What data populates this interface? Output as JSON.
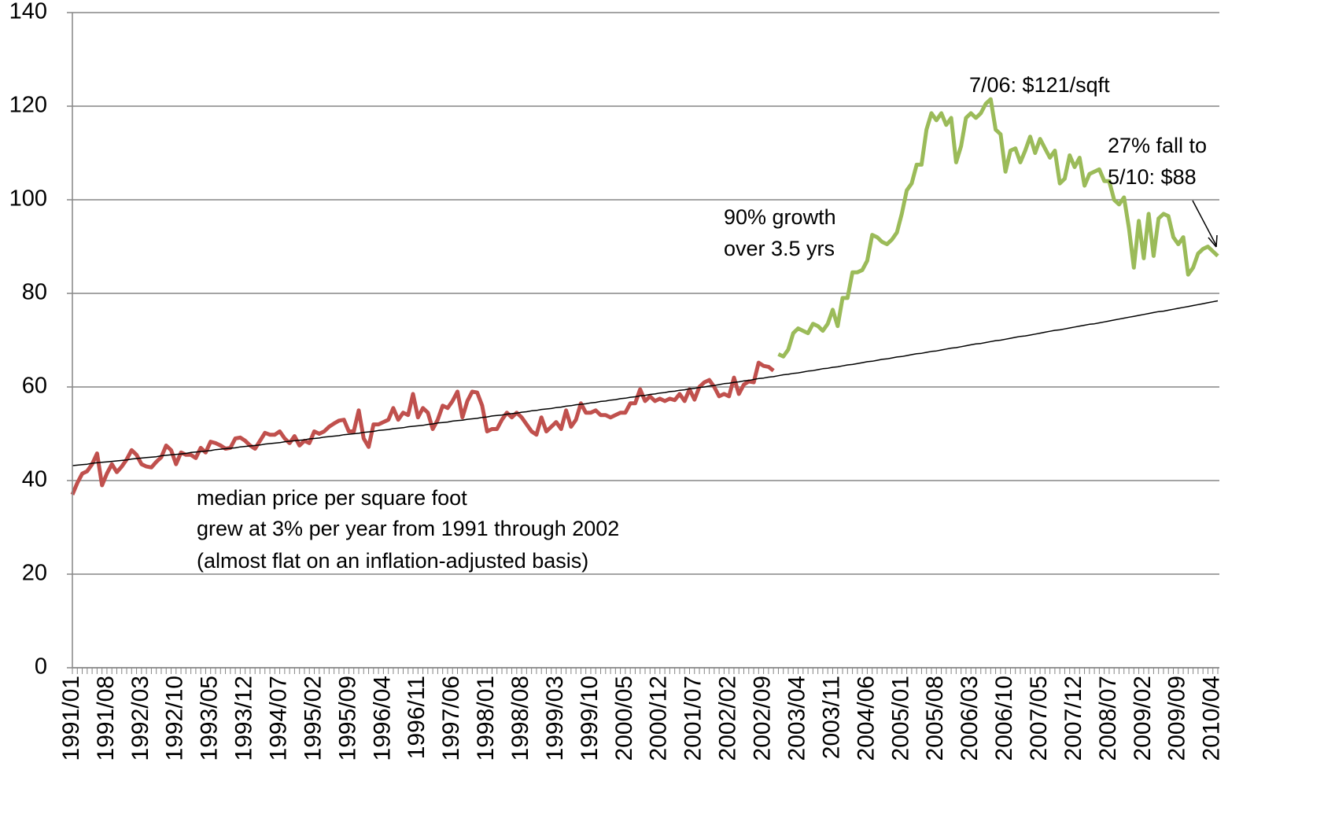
{
  "chart_data": {
    "type": "line",
    "categories": [
      "1991/01",
      null,
      null,
      null,
      null,
      null,
      null,
      "1991/08",
      null,
      null,
      null,
      null,
      null,
      null,
      "1992/03",
      null,
      null,
      null,
      null,
      null,
      null,
      "1992/10",
      null,
      null,
      null,
      null,
      null,
      null,
      "1993/05",
      null,
      null,
      null,
      null,
      null,
      null,
      "1993/12",
      null,
      null,
      null,
      null,
      null,
      null,
      "1994/07",
      null,
      null,
      null,
      null,
      null,
      null,
      "1995/02",
      null,
      null,
      null,
      null,
      null,
      null,
      "1995/09",
      null,
      null,
      null,
      null,
      null,
      null,
      "1996/04",
      null,
      null,
      null,
      null,
      null,
      null,
      "1996/11",
      null,
      null,
      null,
      null,
      null,
      null,
      "1997/06",
      null,
      null,
      null,
      null,
      null,
      null,
      "1998/01",
      null,
      null,
      null,
      null,
      null,
      null,
      "1998/08",
      null,
      null,
      null,
      null,
      null,
      null,
      "1999/03",
      null,
      null,
      null,
      null,
      null,
      null,
      "1999/10",
      null,
      null,
      null,
      null,
      null,
      null,
      "2000/05",
      null,
      null,
      null,
      null,
      null,
      null,
      "2000/12",
      null,
      null,
      null,
      null,
      null,
      null,
      "2001/07",
      null,
      null,
      null,
      null,
      null,
      null,
      "2002/02",
      null,
      null,
      null,
      null,
      null,
      null,
      "2002/09",
      null,
      null,
      null,
      null,
      null,
      null,
      "2003/04",
      null,
      null,
      null,
      null,
      null,
      null,
      "2003/11",
      null,
      null,
      null,
      null,
      null,
      null,
      "2004/06",
      null,
      null,
      null,
      null,
      null,
      null,
      "2005/01",
      null,
      null,
      null,
      null,
      null,
      null,
      "2005/08",
      null,
      null,
      null,
      null,
      null,
      null,
      "2006/03",
      null,
      null,
      null,
      null,
      null,
      null,
      "2006/10",
      null,
      null,
      null,
      null,
      null,
      null,
      "2007/05",
      null,
      null,
      null,
      null,
      null,
      null,
      "2007/12",
      null,
      null,
      null,
      null,
      null,
      null,
      "2008/07",
      null,
      null,
      null,
      null,
      null,
      null,
      "2009/02",
      null,
      null,
      null,
      null,
      null,
      null,
      "2009/09",
      null,
      null,
      null,
      null,
      null,
      null,
      "2010/04",
      null
    ],
    "series": [
      {
        "color": "#c0504d",
        "values": [
          37,
          39.5,
          41.5,
          42,
          43.5,
          45.8,
          39,
          41.5,
          43.5,
          41.8,
          43,
          44.5,
          46.5,
          45.5,
          43.5,
          43,
          42.8,
          44,
          45,
          47.5,
          46.5,
          43.5,
          46,
          45.5,
          45.5,
          44.8,
          47,
          46,
          48.3,
          48,
          47.5,
          46.8,
          47,
          49,
          49.2,
          48.5,
          47.5,
          46.8,
          48.5,
          50.2,
          49.8,
          49.8,
          50.5,
          49,
          48,
          49.5,
          47.5,
          48.5,
          48,
          50.5,
          50,
          50.5,
          51.5,
          52.2,
          52.8,
          53,
          50.5,
          50.5,
          55,
          49,
          47.2,
          52,
          52,
          52.5,
          53,
          55.5,
          53,
          54.5,
          54,
          58.5,
          53.5,
          55.5,
          54.5,
          51,
          53,
          56,
          55.5,
          57,
          59,
          53.5,
          57,
          59,
          58.8,
          56,
          50.5,
          51,
          51,
          53,
          54.5,
          53.5,
          54.5,
          53.5,
          52,
          50.5,
          49.8,
          53.5,
          50.5,
          51.5,
          52.5,
          51,
          55,
          51.5,
          53,
          56.5,
          54.5,
          54.5,
          55,
          54,
          54,
          53.5,
          54,
          54.5,
          54.5,
          56.5,
          56.5,
          59.5,
          57,
          58,
          57,
          57.5,
          57,
          57.5,
          57.2,
          58.5,
          57,
          59.5,
          57.3,
          60,
          61,
          61.5,
          60,
          58,
          58.5,
          58,
          62,
          58.5,
          60.5,
          61.2,
          61,
          65.2,
          64.5,
          64.3,
          63.5,
          null,
          null,
          null,
          null,
          null,
          null,
          null,
          null,
          null,
          null,
          null,
          null,
          null,
          null,
          null,
          null,
          null,
          null,
          null,
          null,
          null,
          null,
          null,
          null,
          null,
          null,
          null,
          null,
          null,
          null,
          null,
          null,
          null,
          null,
          null,
          null,
          null,
          null,
          null,
          null,
          null,
          null,
          null,
          null,
          null,
          null,
          null,
          null,
          null,
          null,
          null,
          null,
          null,
          null,
          null,
          null,
          null,
          null,
          null,
          null,
          null,
          null,
          null,
          null,
          null,
          null,
          null,
          null,
          null,
          null,
          null,
          null,
          null,
          null,
          null,
          null,
          null,
          null,
          null,
          null,
          null,
          null,
          null,
          null,
          null,
          null,
          null,
          null,
          null,
          null
        ]
      },
      {
        "color": "#9bbb59",
        "values": [
          null,
          null,
          null,
          null,
          null,
          null,
          null,
          null,
          null,
          null,
          null,
          null,
          null,
          null,
          null,
          null,
          null,
          null,
          null,
          null,
          null,
          null,
          null,
          null,
          null,
          null,
          null,
          null,
          null,
          null,
          null,
          null,
          null,
          null,
          null,
          null,
          null,
          null,
          null,
          null,
          null,
          null,
          null,
          null,
          null,
          null,
          null,
          null,
          null,
          null,
          null,
          null,
          null,
          null,
          null,
          null,
          null,
          null,
          null,
          null,
          null,
          null,
          null,
          null,
          null,
          null,
          null,
          null,
          null,
          null,
          null,
          null,
          null,
          null,
          null,
          null,
          null,
          null,
          null,
          null,
          null,
          null,
          null,
          null,
          null,
          null,
          null,
          null,
          null,
          null,
          null,
          null,
          null,
          null,
          null,
          null,
          null,
          null,
          null,
          null,
          null,
          null,
          null,
          null,
          null,
          null,
          null,
          null,
          null,
          null,
          null,
          null,
          null,
          null,
          null,
          null,
          null,
          null,
          null,
          null,
          null,
          null,
          null,
          null,
          null,
          null,
          null,
          null,
          null,
          null,
          null,
          null,
          null,
          null,
          null,
          null,
          null,
          null,
          null,
          null,
          null,
          null,
          null,
          67,
          66.5,
          68,
          71.5,
          72.5,
          72,
          71.5,
          73.5,
          73,
          72,
          73.5,
          76.5,
          73,
          79,
          79,
          84.5,
          84.5,
          85,
          87,
          92.5,
          92,
          91,
          90.5,
          91.5,
          93,
          97,
          102,
          103.5,
          107.5,
          107.5,
          115,
          118.5,
          117,
          118.5,
          116,
          117.5,
          108,
          111.5,
          117.5,
          118.5,
          117.5,
          118.5,
          120.5,
          121.5,
          115,
          114,
          106,
          110.5,
          111,
          108,
          110.5,
          113.5,
          110,
          113,
          111,
          109,
          110.5,
          103.5,
          104.5,
          109.5,
          107,
          109,
          103,
          105.5,
          106,
          106.5,
          104,
          104,
          100,
          99,
          100.5,
          94,
          85.5,
          95.5,
          87.5,
          97,
          88,
          96,
          97,
          96.5,
          92,
          90.5,
          92,
          84,
          85.5,
          88.5,
          89.5,
          90,
          89,
          88
        ]
      },
      {
        "color": "#000000",
        "trendline": true,
        "values": [
          43.2,
          43.3,
          43.4,
          43.5,
          43.7,
          43.8,
          43.9,
          44.0,
          44.1,
          44.2,
          44.3,
          44.4,
          44.6,
          44.7,
          44.8,
          44.9,
          45.0,
          45.1,
          45.3,
          45.4,
          45.5,
          45.6,
          45.7,
          45.8,
          46.0,
          46.1,
          46.2,
          46.3,
          46.4,
          46.6,
          46.7,
          46.8,
          46.9,
          47.0,
          47.2,
          47.3,
          47.4,
          47.5,
          47.6,
          47.8,
          47.9,
          48.0,
          48.1,
          48.3,
          48.4,
          48.5,
          48.6,
          48.7,
          48.9,
          49.0,
          49.1,
          49.3,
          49.4,
          49.5,
          49.6,
          49.8,
          49.9,
          50.0,
          50.1,
          50.3,
          50.4,
          50.5,
          50.7,
          50.8,
          50.9,
          51.1,
          51.2,
          51.3,
          51.5,
          51.6,
          51.7,
          51.8,
          52.0,
          52.1,
          52.3,
          52.4,
          52.5,
          52.7,
          52.8,
          52.9,
          53.1,
          53.2,
          53.3,
          53.5,
          53.6,
          53.8,
          53.9,
          54.0,
          54.2,
          54.3,
          54.4,
          54.6,
          54.7,
          54.9,
          55.0,
          55.2,
          55.3,
          55.4,
          55.6,
          55.7,
          55.9,
          56.0,
          56.2,
          56.3,
          56.4,
          56.6,
          56.7,
          56.9,
          57.0,
          57.2,
          57.3,
          57.5,
          57.6,
          57.8,
          57.9,
          58.1,
          58.2,
          58.4,
          58.5,
          58.7,
          58.8,
          59.0,
          59.1,
          59.3,
          59.4,
          59.6,
          59.7,
          59.9,
          60.0,
          60.2,
          60.3,
          60.5,
          60.7,
          60.8,
          61.0,
          61.1,
          61.3,
          61.4,
          61.6,
          61.8,
          61.9,
          62.1,
          62.2,
          62.4,
          62.6,
          62.7,
          62.9,
          63.0,
          63.2,
          63.4,
          63.5,
          63.7,
          63.9,
          64.0,
          64.2,
          64.3,
          64.5,
          64.7,
          64.8,
          65.0,
          65.2,
          65.4,
          65.5,
          65.7,
          65.9,
          66.0,
          66.2,
          66.4,
          66.5,
          66.7,
          66.9,
          67.1,
          67.2,
          67.4,
          67.6,
          67.7,
          67.9,
          68.1,
          68.3,
          68.4,
          68.6,
          68.8,
          69.0,
          69.2,
          69.3,
          69.5,
          69.7,
          69.9,
          70.0,
          70.2,
          70.4,
          70.6,
          70.8,
          70.9,
          71.1,
          71.3,
          71.5,
          71.7,
          71.9,
          72.1,
          72.2,
          72.4,
          72.6,
          72.8,
          73.0,
          73.2,
          73.4,
          73.5,
          73.7,
          73.9,
          74.1,
          74.3,
          74.5,
          74.7,
          74.9,
          75.1,
          75.3,
          75.5,
          75.7,
          75.9,
          76.1,
          76.2,
          76.4,
          76.6,
          76.8,
          77.0,
          77.2,
          77.4,
          77.6,
          77.8,
          78.0,
          78.2,
          78.4
        ]
      }
    ],
    "ylim": [
      0,
      140
    ],
    "yticks": [
      0,
      20,
      40,
      60,
      80,
      100,
      120,
      140
    ],
    "grid": true,
    "annotations": [
      "7/06:  $121/sqft",
      "27% fall to",
      "5/10: $88",
      "90% growth",
      "over 3.5 yrs",
      "median price per square foot",
      "grew at 3% per year from 1991 through 2002",
      "(almost flat on an inflation-adjusted basis)"
    ]
  }
}
